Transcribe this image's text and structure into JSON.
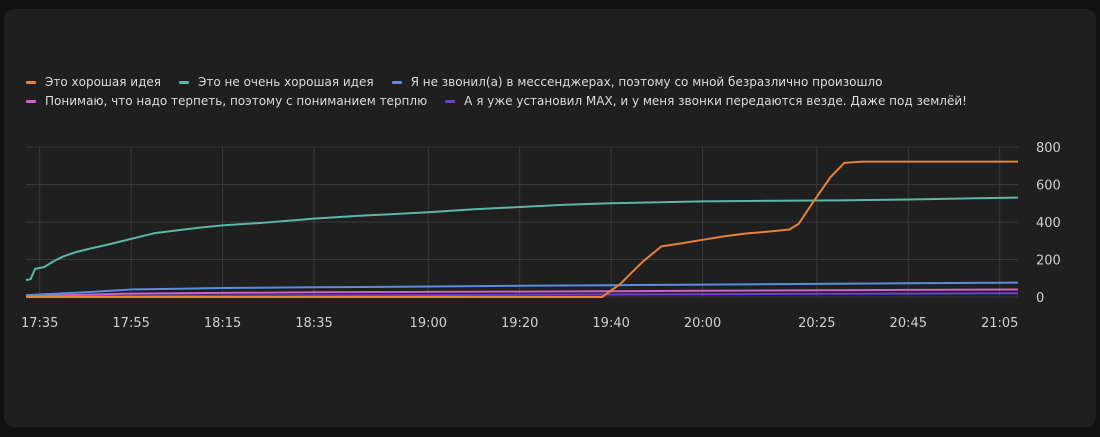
{
  "chart_data": {
    "type": "line",
    "title": "",
    "xlabel": "",
    "ylabel": "",
    "ylim": [
      0,
      800
    ],
    "yticks": [
      0,
      200,
      400,
      600,
      800
    ],
    "xticks": [
      "17:35",
      "17:55",
      "18:15",
      "18:35",
      "19:00",
      "19:20",
      "19:40",
      "20:00",
      "20:25",
      "20:45",
      "21:05"
    ],
    "xlim": [
      "17:32",
      "21:09"
    ],
    "grid": true,
    "legend_position": "top-left",
    "series": [
      {
        "name": "Это хорошая идея",
        "color": "#e8813a",
        "points": [
          [
            "17:32",
            0
          ],
          [
            "19:38",
            0
          ],
          [
            "19:42",
            70
          ],
          [
            "19:47",
            190
          ],
          [
            "19:51",
            270
          ],
          [
            "19:55",
            285
          ],
          [
            "20:00",
            305
          ],
          [
            "20:05",
            325
          ],
          [
            "20:10",
            340
          ],
          [
            "20:15",
            350
          ],
          [
            "20:19",
            360
          ],
          [
            "20:21",
            390
          ],
          [
            "20:24",
            500
          ],
          [
            "20:28",
            640
          ],
          [
            "20:31",
            715
          ],
          [
            "20:35",
            722
          ],
          [
            "21:09",
            722
          ]
        ]
      },
      {
        "name": "Это не очень хорошая идея",
        "color": "#5bb8a8",
        "points": [
          [
            "17:32",
            90
          ],
          [
            "17:33",
            95
          ],
          [
            "17:34",
            150
          ],
          [
            "17:36",
            160
          ],
          [
            "17:38",
            190
          ],
          [
            "17:40",
            215
          ],
          [
            "17:43",
            240
          ],
          [
            "17:46",
            258
          ],
          [
            "17:50",
            280
          ],
          [
            "17:55",
            310
          ],
          [
            "18:00",
            340
          ],
          [
            "18:05",
            355
          ],
          [
            "18:10",
            370
          ],
          [
            "18:15",
            382
          ],
          [
            "18:25",
            398
          ],
          [
            "18:35",
            418
          ],
          [
            "18:45",
            433
          ],
          [
            "19:00",
            452
          ],
          [
            "19:10",
            468
          ],
          [
            "19:20",
            480
          ],
          [
            "19:30",
            492
          ],
          [
            "19:40",
            500
          ],
          [
            "20:00",
            510
          ],
          [
            "20:15",
            513
          ],
          [
            "20:30",
            515
          ],
          [
            "20:45",
            520
          ],
          [
            "21:00",
            527
          ],
          [
            "21:09",
            530
          ]
        ]
      },
      {
        "name": "Я не звонил(а) в мессенджерах, поэтому со мной безразлично произошло",
        "color": "#5a8ce0",
        "points": [
          [
            "17:32",
            10
          ],
          [
            "17:45",
            25
          ],
          [
            "17:55",
            40
          ],
          [
            "18:15",
            48
          ],
          [
            "18:35",
            52
          ],
          [
            "19:00",
            56
          ],
          [
            "19:20",
            60
          ],
          [
            "19:40",
            63
          ],
          [
            "20:00",
            66
          ],
          [
            "20:25",
            70
          ],
          [
            "20:45",
            73
          ],
          [
            "21:09",
            77
          ]
        ]
      },
      {
        "name": "Понимаю, что надо терпеть, поэтому с пониманием терплю",
        "color": "#d05fd0",
        "points": [
          [
            "17:32",
            5
          ],
          [
            "17:45",
            12
          ],
          [
            "17:55",
            18
          ],
          [
            "18:15",
            22
          ],
          [
            "18:35",
            25
          ],
          [
            "19:00",
            27
          ],
          [
            "19:20",
            29
          ],
          [
            "19:40",
            31
          ],
          [
            "20:00",
            33
          ],
          [
            "20:25",
            36
          ],
          [
            "20:45",
            38
          ],
          [
            "21:09",
            40
          ]
        ]
      },
      {
        "name": "А я уже установил MAX, и у меня звонки передаются везде. Даже под землёй!",
        "color": "#6b3fd6",
        "points": [
          [
            "17:32",
            2
          ],
          [
            "17:55",
            6
          ],
          [
            "18:35",
            9
          ],
          [
            "19:20",
            12
          ],
          [
            "20:00",
            15
          ],
          [
            "20:45",
            18
          ],
          [
            "21:09",
            20
          ]
        ]
      }
    ]
  }
}
